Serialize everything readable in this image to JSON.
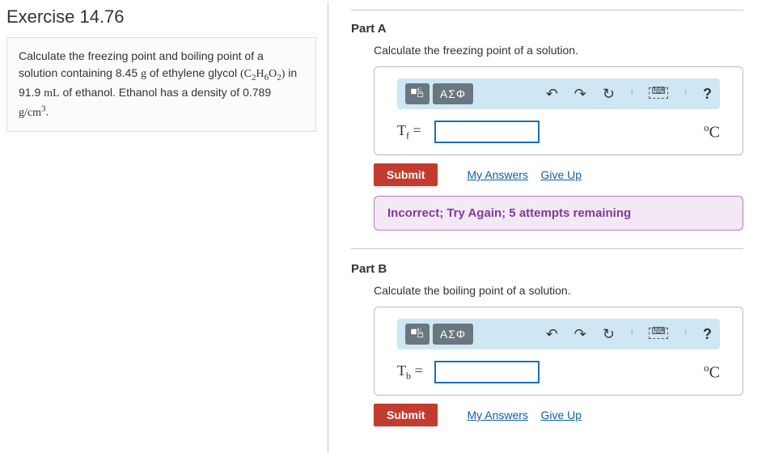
{
  "exercise": {
    "title": "Exercise 14.76"
  },
  "problem": {
    "line1_pre": "Calculate the freezing point and boiling point of a solution containing 8.45 ",
    "unit_g": "g",
    "line1_mid": " of ethylene glycol ",
    "formula_html": "(C<span class='sub'>2</span>H<span class='sub'>6</span>O<span class='sub'>2</span>)",
    "line2_pre": " in 91.9 ",
    "unit_mL": "mL",
    "line2_mid": " of ethanol. Ethanol has a density of 0.789 ",
    "density_unit_html": "g/cm<span class='sup'>3</span>",
    "period": "."
  },
  "parts": {
    "a": {
      "label": "Part A",
      "prompt": "Calculate the freezing point of a solution.",
      "var_html": "T<span class='sub'>f</span> =",
      "unit_html": "<span class='sup'>o</span>C",
      "input_value": ""
    },
    "b": {
      "label": "Part B",
      "prompt": "Calculate the boiling point of a solution.",
      "var_html": "T<span class='sub'>b</span> =",
      "unit_html": "<span class='sup'>o</span>C",
      "input_value": ""
    }
  },
  "toolbar": {
    "templates_name": "templates-icon",
    "greek_label": "ΑΣΦ",
    "undo_name": "undo-icon",
    "redo_name": "redo-icon",
    "reset_name": "reset-icon",
    "keyboard_name": "keyboard-icon",
    "help_label": "?"
  },
  "actions": {
    "submit": "Submit",
    "my_answers": "My Answers",
    "give_up": "Give Up"
  },
  "feedback": {
    "text": "Incorrect; Try Again; 5 attempts remaining"
  },
  "colors": {
    "toolbar_bg": "#cfe7f5",
    "tool_btn_bg": "#6a7680",
    "submit_bg": "#c23b2e",
    "link_color": "#0d5ea6",
    "feedback_bg": "#f4e8f5",
    "feedback_border": "#b97bc4",
    "feedback_text": "#7e3c99",
    "input_border": "#1b6fb8"
  }
}
